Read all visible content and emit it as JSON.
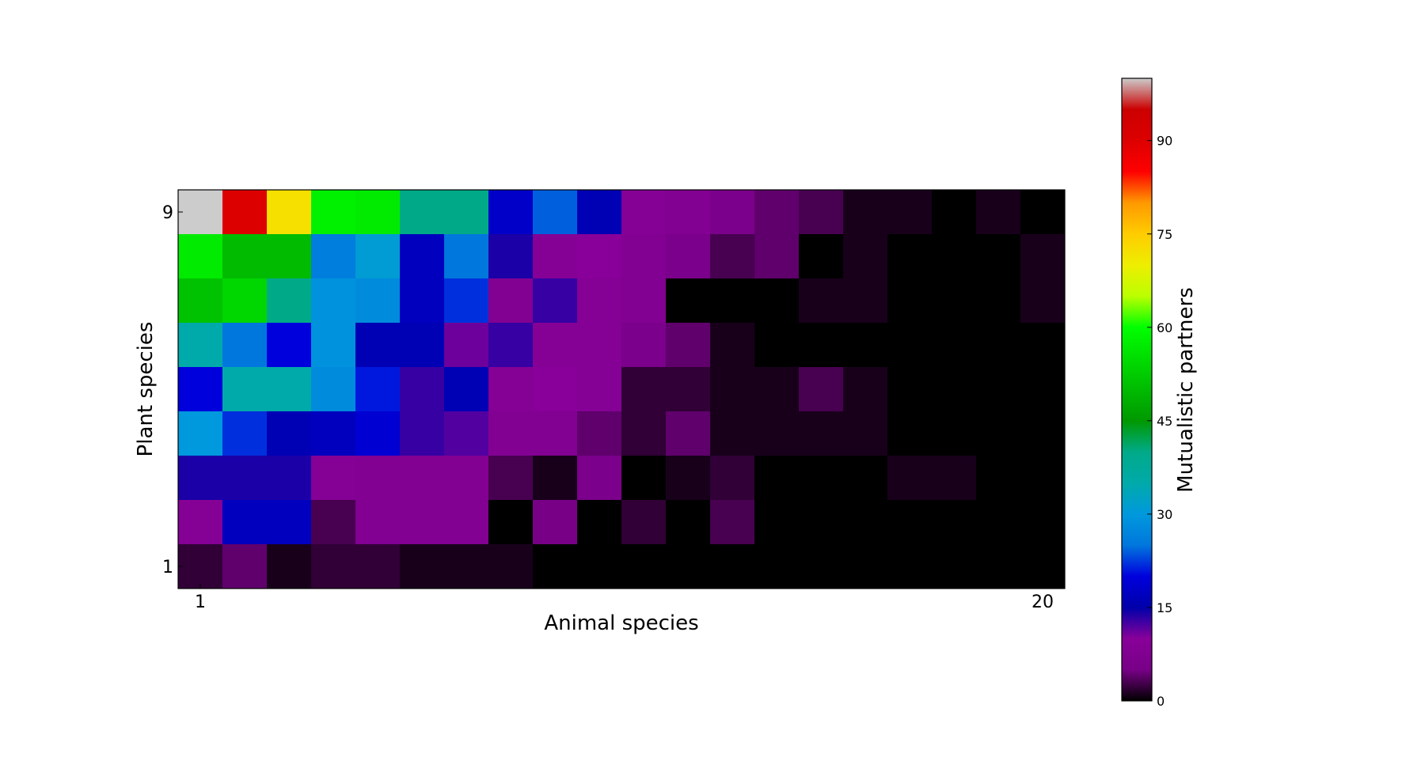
{
  "chart_data": {
    "type": "heatmap",
    "title": "",
    "xlabel": "Animal species",
    "ylabel": "Plant species",
    "x_tick_labels": [
      "1",
      "20"
    ],
    "y_tick_labels": [
      "9",
      "1"
    ],
    "n_columns": 20,
    "n_rows": 9,
    "rows_top_to_bottom": [
      [
        100,
        90,
        72,
        58,
        57,
        40,
        40,
        18,
        24,
        16,
        9,
        8,
        6,
        4,
        3,
        1,
        1,
        0,
        1,
        0
      ],
      [
        57,
        50,
        50,
        26,
        31,
        17,
        25,
        14,
        9,
        10,
        8,
        6,
        3,
        4,
        0,
        1,
        0,
        0,
        0,
        1
      ],
      [
        51,
        54,
        40,
        29,
        28,
        17,
        22,
        8,
        13,
        9,
        8,
        0,
        0,
        0,
        1,
        1,
        0,
        0,
        0,
        1
      ],
      [
        35,
        25,
        20,
        29,
        16,
        16,
        11,
        13,
        9,
        9,
        6,
        4,
        1,
        0,
        0,
        0,
        0,
        0,
        0,
        0
      ],
      [
        20,
        35,
        35,
        28,
        21,
        13,
        16,
        9,
        10,
        9,
        2,
        2,
        1,
        1,
        3,
        1,
        0,
        0,
        0,
        0
      ],
      [
        30,
        22,
        16,
        17,
        19,
        13,
        12,
        8,
        8,
        4,
        2,
        4,
        1,
        1,
        1,
        1,
        0,
        0,
        0,
        0
      ],
      [
        14,
        14,
        14,
        9,
        8,
        8,
        8,
        3,
        1,
        6,
        0,
        1,
        2,
        0,
        0,
        0,
        1,
        1,
        0,
        0
      ],
      [
        9,
        17,
        17,
        3,
        8,
        8,
        8,
        0,
        5,
        0,
        2,
        0,
        3,
        0,
        0,
        0,
        0,
        0,
        0,
        0
      ],
      [
        2,
        4,
        1,
        2,
        2,
        1,
        1,
        1,
        0,
        0,
        0,
        0,
        0,
        0,
        0,
        0,
        0,
        0,
        0,
        0
      ]
    ],
    "colorbar": {
      "label": "Mutualistic partners",
      "colormap": "nipy_spectral",
      "range": [
        0,
        100
      ],
      "ticks": [
        "0",
        "15",
        "30",
        "45",
        "60",
        "75",
        "90"
      ]
    }
  }
}
